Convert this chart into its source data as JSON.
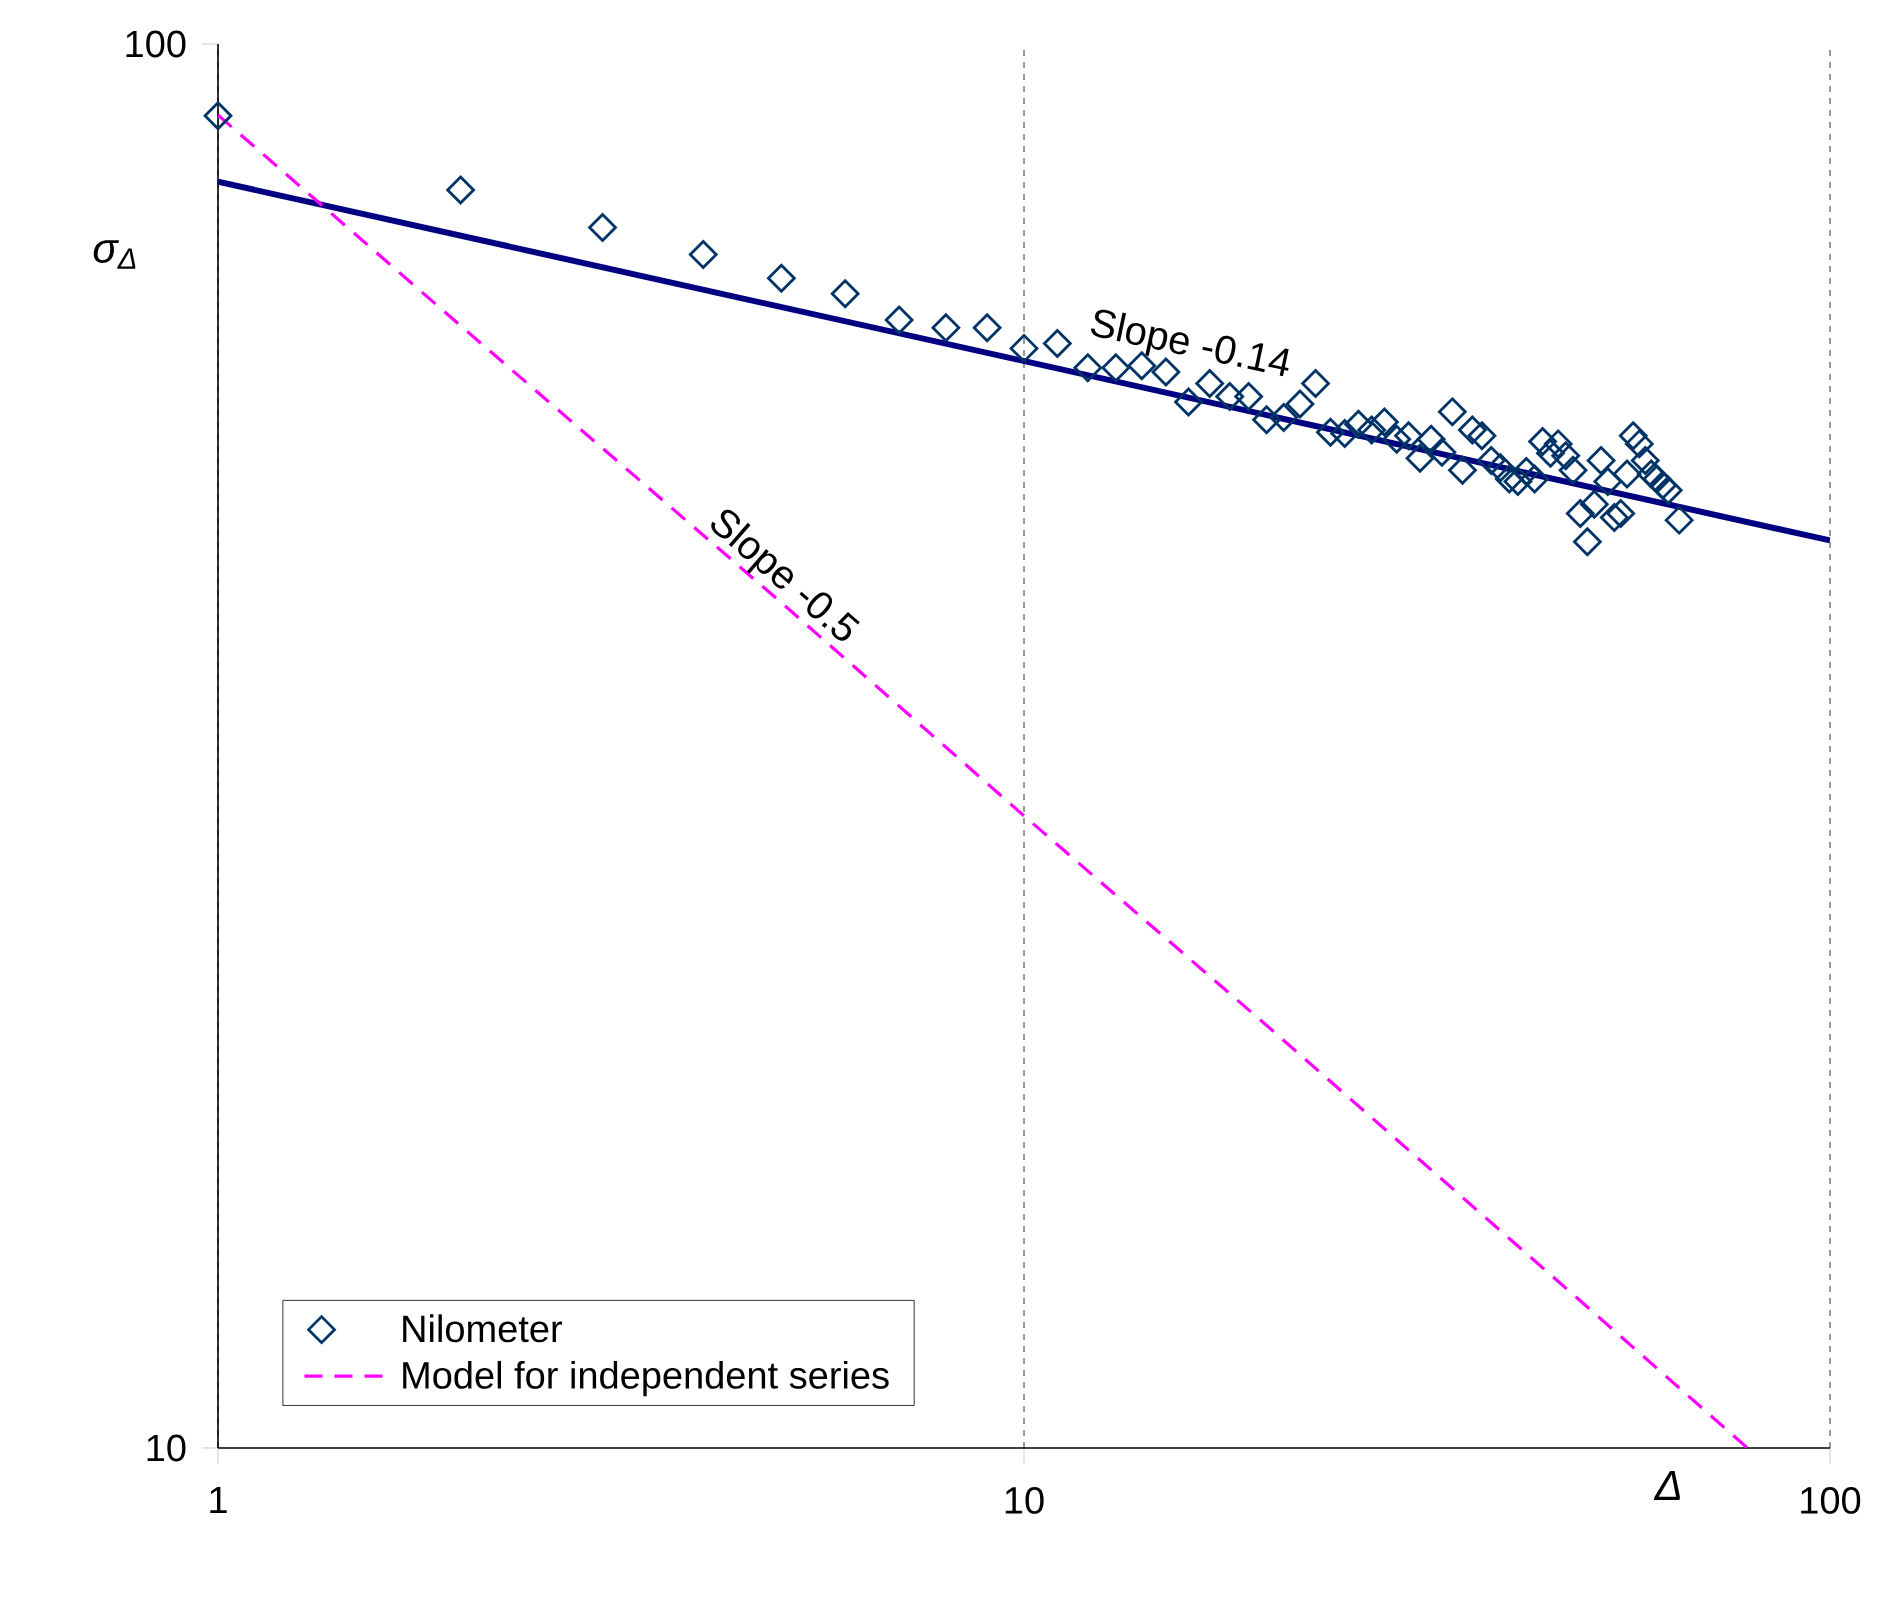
{
  "chart_data": {
    "type": "scatter",
    "xlabel": "Δ",
    "ylabel": "σ$_{Δ}$",
    "log": "xy",
    "xlim": [
      1,
      100
    ],
    "ylim": [
      10,
      100
    ],
    "xticks": [
      1,
      10,
      100
    ],
    "yticks": [
      10,
      100
    ],
    "grid": "x",
    "legend": "bottom left",
    "annotations": [
      "Slope -0.14",
      "Slope -0.5"
    ],
    "series": [
      {
        "name": "Nilometer",
        "type": "scatter",
        "color": "#003366",
        "marker": "diamond",
        "x": [
          1,
          2,
          3,
          4,
          5,
          6,
          7,
          8,
          9,
          10,
          11,
          12,
          13,
          14,
          15,
          16,
          17,
          18,
          19,
          20,
          21,
          22,
          23,
          24,
          25,
          26,
          27,
          28,
          29,
          30,
          31,
          32,
          33,
          34,
          35,
          36,
          37,
          38,
          39,
          40,
          41,
          42,
          43,
          44,
          45,
          46,
          47,
          48,
          49,
          50,
          51,
          52,
          53,
          54,
          55,
          56,
          57,
          58,
          59,
          60,
          61,
          62,
          63,
          65
        ],
        "values": [
          88.9,
          78.7,
          74.0,
          70.8,
          68.1,
          66.4,
          63.6,
          62.8,
          62.8,
          60.7,
          61.2,
          58.8,
          58.8,
          59.0,
          58.4,
          55.6,
          57.3,
          56.1,
          56.1,
          54.0,
          54.2,
          55.4,
          57.3,
          52.9,
          52.8,
          53.6,
          53.1,
          53.8,
          52.3,
          52.6,
          50.7,
          52.3,
          51.2,
          54.7,
          49.7,
          53.1,
          52.6,
          50.5,
          49.9,
          49.0,
          48.8,
          49.6,
          49.0,
          52.1,
          51.1,
          51.9,
          50.9,
          49.7,
          46.3,
          44.2,
          47.0,
          50.5,
          48.8,
          46.0,
          46.3,
          49.4,
          52.6,
          51.9,
          50.5,
          49.4,
          49.0,
          48.5,
          48.1,
          45.8
        ]
      },
      {
        "type": "line",
        "color": "#000080",
        "line_style": "solid",
        "x": [
          1,
          100
        ],
        "values": [
          79.8,
          44.3
        ]
      },
      {
        "name": "Model for independent series",
        "type": "line",
        "color": "#ff00ff",
        "line_style": "dashed",
        "x": [
          1,
          2,
          5,
          10,
          20,
          50,
          79
        ],
        "values": [
          89,
          63,
          40,
          28.2,
          20,
          12.6,
          10.0
        ]
      }
    ]
  }
}
